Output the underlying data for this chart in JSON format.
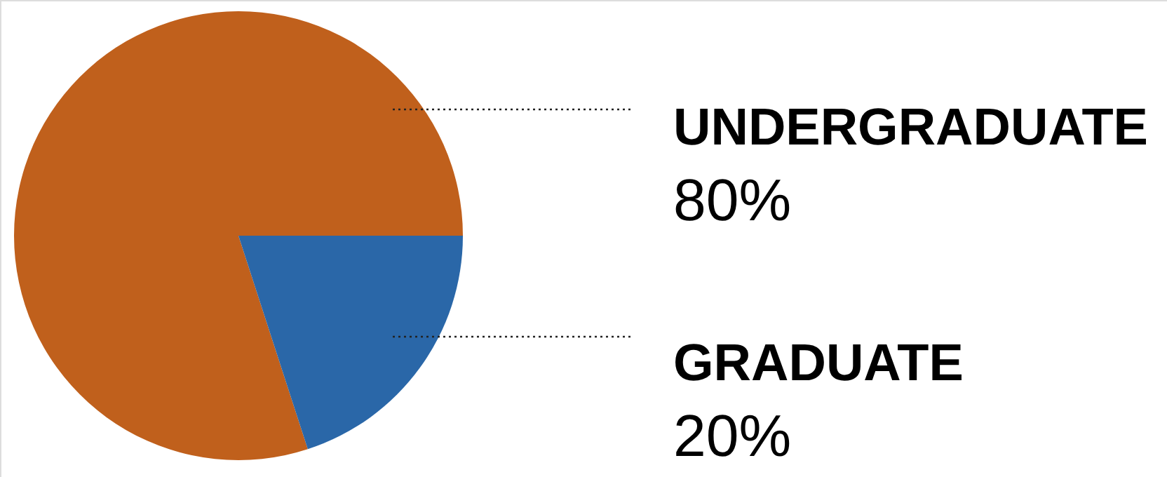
{
  "chart_data": {
    "type": "pie",
    "categories": [
      "UNDERGRADUATE",
      "GRADUATE"
    ],
    "values": [
      80,
      20
    ],
    "colors": [
      "#c0601c",
      "#2a67a8"
    ],
    "value_labels": [
      "80%",
      "20%"
    ]
  }
}
